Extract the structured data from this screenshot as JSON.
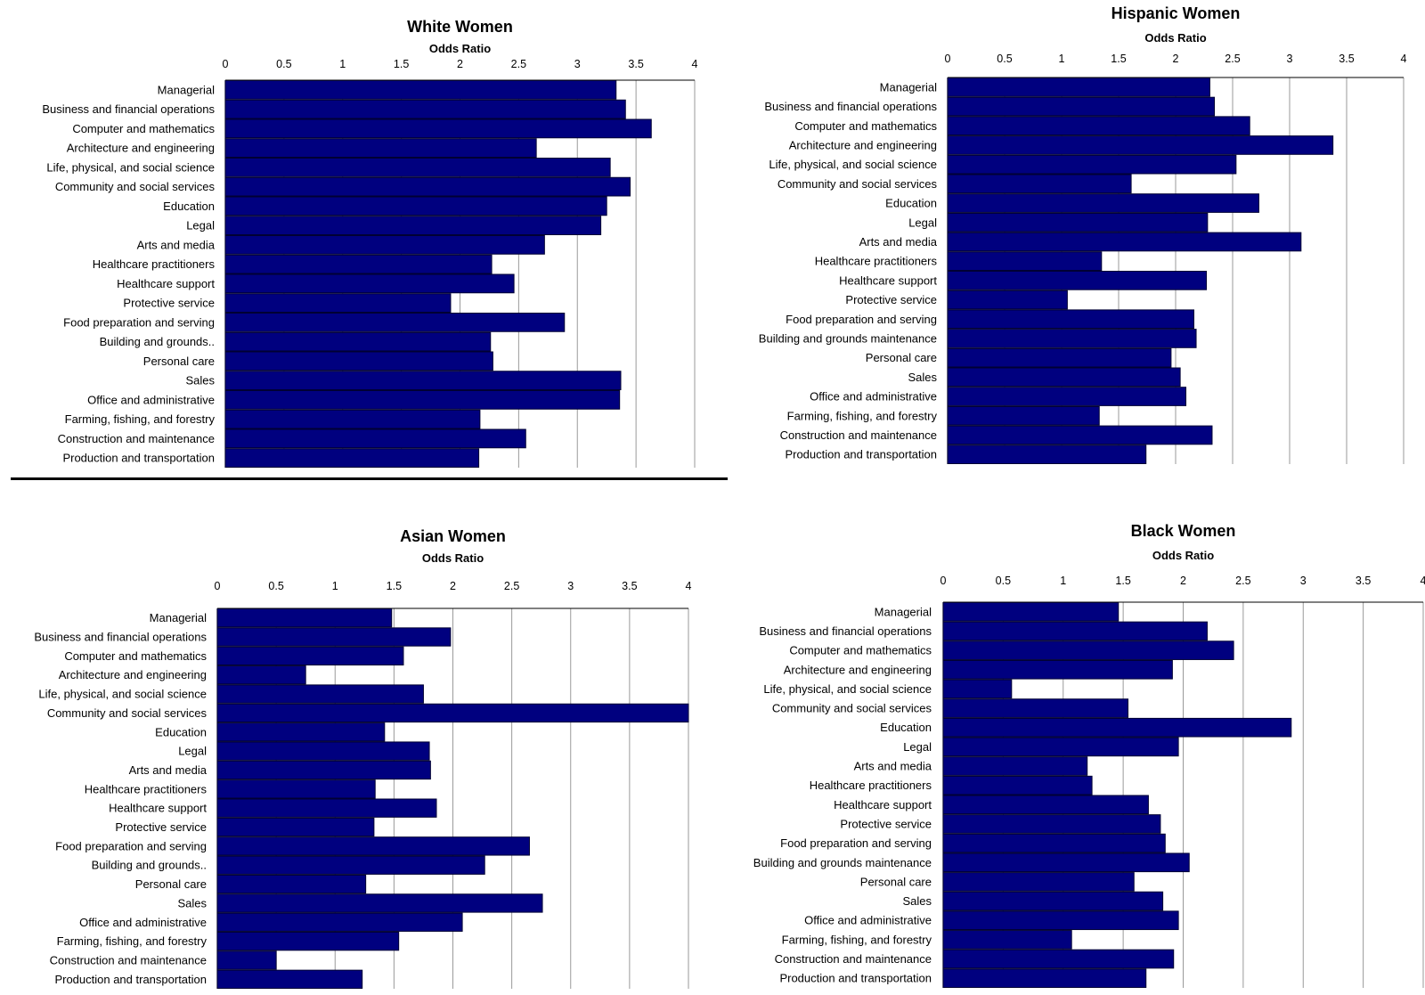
{
  "colors": {
    "bar": "#00007f",
    "bar_stroke": "#000033",
    "grid": "#9a9a9a",
    "axis": "#000000"
  },
  "chart_data": [
    {
      "type": "bar",
      "orientation": "horizontal",
      "title": "White Women",
      "xlabel": "Odds Ratio",
      "xlim": [
        0,
        4
      ],
      "ticks": [
        "0",
        "0.5",
        "1",
        "1.5",
        "2",
        "2.5",
        "3",
        "3.5",
        "4"
      ],
      "grid": true,
      "categories": [
        "Managerial",
        "Business and financial operations",
        "Computer and mathematics",
        "Architecture and engineering",
        "Life, physical, and social science",
        "Community and social services",
        "Education",
        "Legal",
        "Arts and media",
        "Healthcare practitioners",
        "Healthcare support",
        "Protective service",
        "Food preparation and serving",
        "Building and grounds..",
        "Personal care",
        "Sales",
        "Office and administrative",
        "Farming, fishing, and forestry",
        "Construction and maintenance",
        "Production and transportation"
      ],
      "values": [
        3.33,
        3.41,
        3.63,
        2.65,
        3.28,
        3.45,
        3.25,
        3.2,
        2.72,
        2.27,
        2.46,
        1.92,
        2.89,
        2.26,
        2.28,
        3.37,
        3.36,
        2.17,
        2.56,
        2.16
      ]
    },
    {
      "type": "bar",
      "orientation": "horizontal",
      "title": "Hispanic Women",
      "xlabel": "Odds Ratio",
      "xlim": [
        0,
        4
      ],
      "ticks": [
        "0",
        "0.5",
        "1",
        "1.5",
        "2",
        "2.5",
        "3",
        "3.5",
        "4"
      ],
      "grid": true,
      "categories": [
        "Managerial",
        "Business and financial operations",
        "Computer and mathematics",
        "Architecture and engineering",
        "Life, physical, and social science",
        "Community and social services",
        "Education",
        "Legal",
        "Arts and media",
        "Healthcare practitioners",
        "Healthcare support",
        "Protective service",
        "Food preparation and serving",
        "Building and grounds maintenance",
        "Personal care",
        "Sales",
        "Office and administrative",
        "Farming, fishing, and forestry",
        "Construction and maintenance",
        "Production and transportation"
      ],
      "values": [
        2.3,
        2.34,
        2.65,
        3.38,
        2.53,
        1.61,
        2.73,
        2.28,
        3.1,
        1.35,
        2.27,
        1.05,
        2.16,
        2.18,
        1.96,
        2.04,
        2.09,
        1.33,
        2.32,
        1.74
      ]
    },
    {
      "type": "bar",
      "orientation": "horizontal",
      "title": "Asian Women",
      "xlabel": "Odds Ratio",
      "xlim": [
        0,
        4
      ],
      "ticks": [
        "0",
        "0.5",
        "1",
        "1.5",
        "2",
        "2.5",
        "3",
        "3.5",
        "4"
      ],
      "grid": true,
      "categories": [
        "Managerial",
        "Business and financial operations",
        "Computer and mathematics",
        "Architecture and engineering",
        "Life, physical, and social science",
        "Community and social services",
        "Education",
        "Legal",
        "Arts and media",
        "Healthcare practitioners",
        "Healthcare support",
        "Protective service",
        "Food preparation and serving",
        "Building and grounds..",
        "Personal care",
        "Sales",
        "Office and administrative",
        "Farming, fishing, and forestry",
        "Construction and maintenance",
        "Production and transportation"
      ],
      "values": [
        1.48,
        1.98,
        1.58,
        0.75,
        1.75,
        4.0,
        1.42,
        1.8,
        1.81,
        1.34,
        1.86,
        1.33,
        2.65,
        2.27,
        1.26,
        2.76,
        2.08,
        1.54,
        0.5,
        1.23
      ]
    },
    {
      "type": "bar",
      "orientation": "horizontal",
      "title": "Black Women",
      "xlabel": "Odds Ratio",
      "xlim": [
        0,
        4
      ],
      "ticks": [
        "0",
        "0.5",
        "1",
        "1.5",
        "2",
        "2.5",
        "3",
        "3.5",
        "4"
      ],
      "grid": true,
      "categories": [
        "Managerial",
        "Business and financial operations",
        "Computer and mathematics",
        "Architecture and engineering",
        "Life, physical, and social science",
        "Community and social services",
        "Education",
        "Legal",
        "Arts and media",
        "Healthcare practitioners",
        "Healthcare support",
        "Protective service",
        "Food preparation and serving",
        "Building and grounds maintenance",
        "Personal care",
        "Sales",
        "Office and administrative",
        "Farming, fishing, and forestry",
        "Construction and maintenance",
        "Production and transportation"
      ],
      "values": [
        1.46,
        2.2,
        2.42,
        1.91,
        0.57,
        1.54,
        2.9,
        1.96,
        1.2,
        1.24,
        1.71,
        1.81,
        1.85,
        2.05,
        1.59,
        1.83,
        1.96,
        1.07,
        1.92,
        1.69
      ]
    }
  ]
}
